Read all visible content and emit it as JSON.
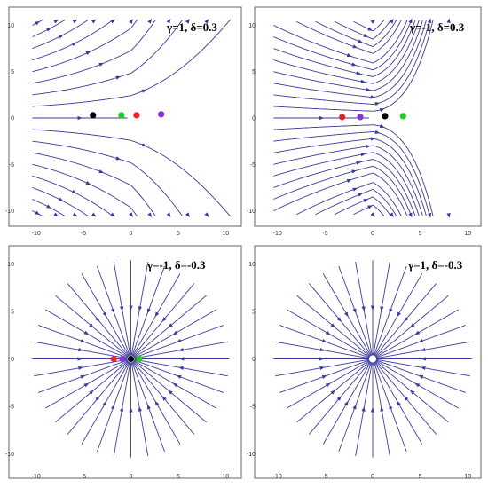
{
  "chart_data": [
    {
      "type": "streamplot",
      "title": "γ=1, δ=0.3",
      "xlim": [
        -11,
        11
      ],
      "ylim": [
        -11,
        11
      ],
      "xticks": [
        -10,
        -5,
        0,
        5,
        10
      ],
      "yticks": [
        -10,
        -5,
        0,
        5,
        10
      ],
      "stream_color": "#3b3b9a",
      "points": [
        {
          "color": "#000000",
          "x": -4.0,
          "y": 0.3
        },
        {
          "color": "#22cc22",
          "x": -1.0,
          "y": 0.3
        },
        {
          "color": "#ee2222",
          "x": 0.6,
          "y": 0.3
        },
        {
          "color": "#8833cc",
          "x": 3.2,
          "y": 0.4
        }
      ]
    },
    {
      "type": "streamplot",
      "title": "γ=-1, δ=0.3",
      "xlim": [
        -11,
        11
      ],
      "ylim": [
        -11,
        11
      ],
      "xticks": [
        -10,
        -5,
        0,
        5,
        10
      ],
      "yticks": [
        -10,
        -5,
        0,
        5,
        10
      ],
      "stream_color": "#3b3b9a",
      "points": [
        {
          "color": "#ee2222",
          "x": -3.2,
          "y": 0.1
        },
        {
          "color": "#8833cc",
          "x": -1.3,
          "y": 0.1
        },
        {
          "color": "#000000",
          "x": 1.3,
          "y": 0.2
        },
        {
          "color": "#22cc22",
          "x": 3.2,
          "y": 0.2
        }
      ]
    },
    {
      "type": "streamplot",
      "title": "γ=-1, δ=-0.3",
      "xlim": [
        -11,
        11
      ],
      "ylim": [
        -11,
        11
      ],
      "xticks": [
        -10,
        -5,
        0,
        5,
        10
      ],
      "yticks": [
        -10,
        -5,
        0,
        5,
        10
      ],
      "stream_color": "#3b3b9a",
      "points": [
        {
          "color": "#ee2222",
          "x": -1.8,
          "y": 0.0
        },
        {
          "color": "#8833cc",
          "x": -0.9,
          "y": 0.0
        },
        {
          "color": "#000000",
          "x": 0.0,
          "y": 0.0
        },
        {
          "color": "#22cc22",
          "x": 0.9,
          "y": 0.0
        }
      ]
    },
    {
      "type": "streamplot",
      "title": "γ=1, δ=-0.3",
      "xlim": [
        -11,
        11
      ],
      "ylim": [
        -11,
        11
      ],
      "xticks": [
        -10,
        -5,
        0,
        5,
        10
      ],
      "yticks": [
        -10,
        -5,
        0,
        5,
        10
      ],
      "stream_color": "#3b3b9a",
      "points": []
    }
  ]
}
